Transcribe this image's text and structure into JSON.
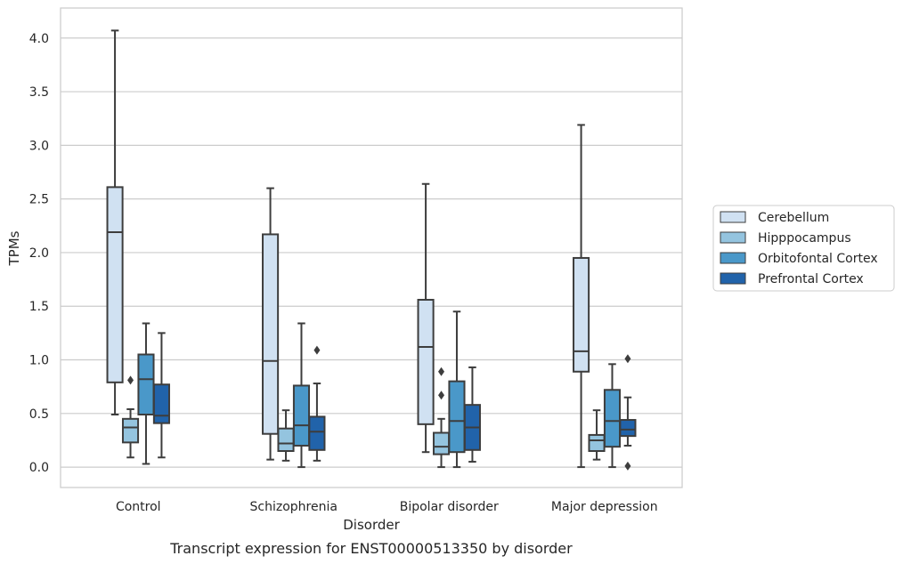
{
  "chart_data": {
    "type": "box",
    "caption": "Transcript expression for ENST00000513350 by disorder",
    "xlabel": "Disorder",
    "ylabel": "TPMs",
    "ylim": [
      -0.19,
      4.28
    ],
    "yticks": [
      "0.0",
      "0.5",
      "1.0",
      "1.5",
      "2.0",
      "2.5",
      "3.0",
      "3.5",
      "4.0"
    ],
    "grid": "horizontal",
    "legend_position": "right",
    "categories": [
      "Control",
      "Schizophrenia",
      "Bipolar disorder",
      "Major depression"
    ],
    "series": [
      {
        "name": "Cerebellum",
        "color": "#d0e1f2",
        "boxes": [
          {
            "whisker_low": 0.49,
            "q1": 0.79,
            "median": 2.19,
            "q3": 2.61,
            "whisker_high": 4.07,
            "outliers": []
          },
          {
            "whisker_low": 0.07,
            "q1": 0.31,
            "median": 0.99,
            "q3": 2.17,
            "whisker_high": 2.6,
            "outliers": []
          },
          {
            "whisker_low": 0.14,
            "q1": 0.4,
            "median": 1.12,
            "q3": 1.56,
            "whisker_high": 2.64,
            "outliers": []
          },
          {
            "whisker_low": 0.0,
            "q1": 0.89,
            "median": 1.08,
            "q3": 1.95,
            "whisker_high": 3.19,
            "outliers": []
          }
        ]
      },
      {
        "name": "Hipppocampus",
        "color": "#94c4df",
        "boxes": [
          {
            "whisker_low": 0.09,
            "q1": 0.23,
            "median": 0.37,
            "q3": 0.45,
            "whisker_high": 0.54,
            "outliers": [
              0.81
            ]
          },
          {
            "whisker_low": 0.06,
            "q1": 0.15,
            "median": 0.22,
            "q3": 0.36,
            "whisker_high": 0.53,
            "outliers": []
          },
          {
            "whisker_low": 0.0,
            "q1": 0.12,
            "median": 0.19,
            "q3": 0.32,
            "whisker_high": 0.45,
            "outliers": [
              0.67,
              0.89
            ]
          },
          {
            "whisker_low": 0.07,
            "q1": 0.15,
            "median": 0.25,
            "q3": 0.3,
            "whisker_high": 0.53,
            "outliers": []
          }
        ]
      },
      {
        "name": "Orbitofontal Cortex",
        "color": "#4a98c9",
        "boxes": [
          {
            "whisker_low": 0.03,
            "q1": 0.49,
            "median": 0.82,
            "q3": 1.05,
            "whisker_high": 1.34,
            "outliers": []
          },
          {
            "whisker_low": 0.0,
            "q1": 0.2,
            "median": 0.39,
            "q3": 0.76,
            "whisker_high": 1.34,
            "outliers": []
          },
          {
            "whisker_low": 0.0,
            "q1": 0.14,
            "median": 0.43,
            "q3": 0.8,
            "whisker_high": 1.45,
            "outliers": []
          },
          {
            "whisker_low": 0.0,
            "q1": 0.19,
            "median": 0.43,
            "q3": 0.72,
            "whisker_high": 0.96,
            "outliers": []
          }
        ]
      },
      {
        "name": "Prefrontal Cortex",
        "color": "#2163aa",
        "boxes": [
          {
            "whisker_low": 0.09,
            "q1": 0.41,
            "median": 0.48,
            "q3": 0.77,
            "whisker_high": 1.25,
            "outliers": []
          },
          {
            "whisker_low": 0.06,
            "q1": 0.16,
            "median": 0.33,
            "q3": 0.47,
            "whisker_high": 0.78,
            "outliers": [
              1.09
            ]
          },
          {
            "whisker_low": 0.05,
            "q1": 0.16,
            "median": 0.37,
            "q3": 0.58,
            "whisker_high": 0.93,
            "outliers": []
          },
          {
            "whisker_low": 0.2,
            "q1": 0.29,
            "median": 0.35,
            "q3": 0.44,
            "whisker_high": 0.65,
            "outliers": [
              0.01,
              1.01
            ]
          }
        ]
      }
    ]
  }
}
